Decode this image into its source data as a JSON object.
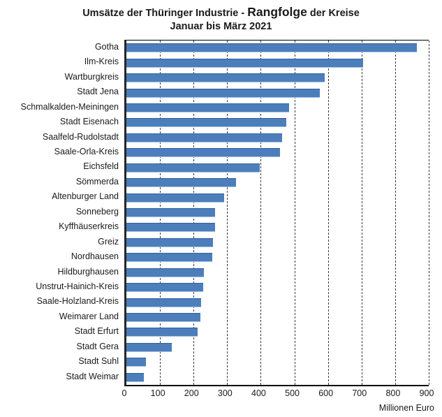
{
  "title": {
    "prefix": "Umsätze der Thüringer Industrie - ",
    "emphasis": "Rangfolge",
    "suffix": " der Kreise",
    "subtitle": "Januar bis März 2021"
  },
  "axis_label": "Millionen Euro",
  "colors": {
    "bar_fill": "#4d7ebc",
    "bar_edge_dark": "#30609f",
    "bar_edge_light": "#a9c3e4",
    "gridline": "#3a3a3a",
    "axis": "#000000",
    "text": "#1a1a1a",
    "background": "#ffffff"
  },
  "chart_data": {
    "type": "bar",
    "orientation": "horizontal",
    "title": "Umsätze der Thüringer Industrie - Rangfolge der Kreise",
    "subtitle": "Januar bis März 2021",
    "xlabel": "Millionen Euro",
    "xlim": [
      0,
      900
    ],
    "xticks": [
      0,
      100,
      200,
      300,
      400,
      500,
      600,
      700,
      800,
      900
    ],
    "grid": "vertical-dashed",
    "legend": "none",
    "categories": [
      "Gotha",
      "Ilm-Kreis",
      "Wartburgkreis",
      "Stadt Jena",
      "Schmalkalden-Meiningen",
      "Stadt Eisenach",
      "Saalfeld-Rudolstadt",
      "Saale-Orla-Kreis",
      "Eichsfeld",
      "Sömmerda",
      "Altenburger Land",
      "Sonneberg",
      "Kyffhäuserkreis",
      "Greiz",
      "Nordhausen",
      "Hildburghausen",
      "Unstrut-Hainich-Kreis",
      "Saale-Holzland-Kreis",
      "Weimarer Land",
      "Stadt Erfurt",
      "Stadt Gera",
      "Stadt Suhl",
      "Stadt Weimar"
    ],
    "values": [
      865,
      705,
      590,
      575,
      485,
      475,
      463,
      458,
      398,
      327,
      290,
      264,
      263,
      257,
      255,
      230,
      228,
      223,
      221,
      211,
      136,
      59,
      52
    ]
  }
}
